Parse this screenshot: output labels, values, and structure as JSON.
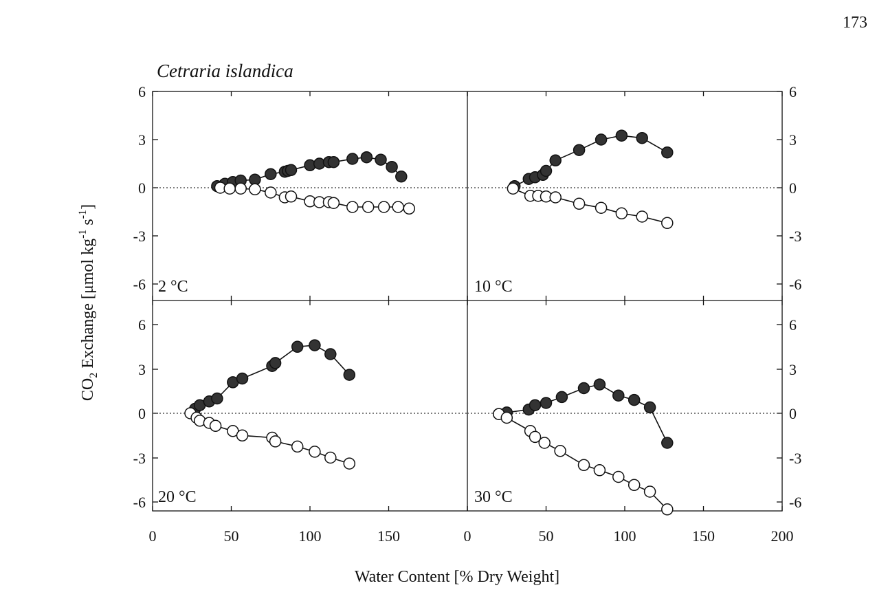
{
  "page_number": "173",
  "figure_title": "Cetraria islandica",
  "ylabel": {
    "main": "CO",
    "sub": "2",
    "rest": " Exchange [μmol kg",
    "sup1": "-1",
    "rest2": " s",
    "sup2": "-1",
    "end": "]"
  },
  "xlabel": "Water Content [% Dry Weight]",
  "y_tick_labels": [
    "6",
    "3",
    "0",
    "-3",
    "-6"
  ],
  "x_tick_labels_left": [
    "0",
    "50",
    "100",
    "150"
  ],
  "x_tick_labels_right": [
    "0",
    "50",
    "100",
    "150",
    "200"
  ],
  "colors": {
    "filled": "#333333",
    "open": "#ffffff",
    "line": "#111111",
    "zero_line": "#555555"
  },
  "chart_data": [
    {
      "type": "scatter",
      "panel": "2 °C",
      "xlim": [
        0,
        200
      ],
      "ylim": [
        -7,
        6
      ],
      "grid": false,
      "zero_line": "dotted",
      "series": [
        {
          "marker": "filled",
          "x": [
            41,
            46,
            51,
            56,
            65,
            75,
            84,
            86,
            88,
            100,
            106,
            112,
            115,
            127,
            136,
            145,
            152,
            158
          ],
          "y": [
            0.1,
            0.25,
            0.35,
            0.45,
            0.5,
            0.85,
            1.0,
            1.05,
            1.1,
            1.4,
            1.5,
            1.6,
            1.6,
            1.8,
            1.9,
            1.75,
            1.3,
            0.7
          ]
        },
        {
          "marker": "open",
          "x": [
            43,
            49,
            56,
            65,
            75,
            84,
            88,
            100,
            106,
            112,
            115,
            127,
            137,
            147,
            156,
            163
          ],
          "y": [
            0.0,
            -0.05,
            -0.05,
            -0.1,
            -0.3,
            -0.6,
            -0.55,
            -0.85,
            -0.9,
            -0.9,
            -0.95,
            -1.2,
            -1.2,
            -1.2,
            -1.2,
            -1.3
          ]
        }
      ]
    },
    {
      "type": "scatter",
      "panel": "10 °C",
      "xlim": [
        0,
        200
      ],
      "ylim": [
        -7,
        6
      ],
      "grid": false,
      "zero_line": "dotted",
      "series": [
        {
          "marker": "filled",
          "x": [
            30,
            39,
            43,
            48,
            50,
            56,
            71,
            85,
            98,
            111,
            127
          ],
          "y": [
            0.1,
            0.55,
            0.65,
            0.8,
            1.05,
            1.7,
            2.35,
            3.0,
            3.25,
            3.1,
            2.2
          ]
        },
        {
          "marker": "open",
          "x": [
            29,
            40,
            45,
            50,
            56,
            71,
            85,
            98,
            111,
            127
          ],
          "y": [
            -0.05,
            -0.5,
            -0.5,
            -0.55,
            -0.6,
            -1.0,
            -1.25,
            -1.6,
            -1.8,
            -2.2
          ]
        }
      ]
    },
    {
      "type": "scatter",
      "panel": "20 °C",
      "xlim": [
        0,
        200
      ],
      "ylim": [
        -7,
        7
      ],
      "grid": false,
      "zero_line": "dotted",
      "series": [
        {
          "marker": "filled",
          "x": [
            27,
            30,
            36,
            41,
            51,
            57,
            76,
            78,
            92,
            103,
            113,
            125
          ],
          "y": [
            0.3,
            0.55,
            0.8,
            1.0,
            2.1,
            2.35,
            3.2,
            3.4,
            4.5,
            4.6,
            4.0,
            2.6
          ]
        },
        {
          "marker": "open",
          "x": [
            24,
            28,
            30,
            36,
            40,
            51,
            57,
            76,
            78,
            92,
            103,
            113,
            125
          ],
          "y": [
            0.0,
            -0.3,
            -0.5,
            -0.65,
            -0.85,
            -1.2,
            -1.5,
            -1.65,
            -1.9,
            -2.25,
            -2.6,
            -3.0,
            -3.4
          ]
        }
      ]
    },
    {
      "type": "scatter",
      "panel": "30 °C",
      "xlim": [
        0,
        200
      ],
      "ylim": [
        -7,
        7
      ],
      "grid": false,
      "zero_line": "dotted",
      "series": [
        {
          "marker": "filled",
          "x": [
            20,
            25,
            39,
            43,
            50,
            60,
            74,
            84,
            96,
            106,
            116,
            127
          ],
          "y": [
            -0.05,
            0.05,
            0.25,
            0.55,
            0.7,
            1.1,
            1.7,
            1.95,
            1.2,
            0.9,
            0.4,
            -2.0
          ]
        },
        {
          "marker": "open",
          "x": [
            20,
            25,
            40,
            43,
            49,
            59,
            74,
            84,
            96,
            106,
            116,
            127
          ],
          "y": [
            -0.05,
            -0.3,
            -1.2,
            -1.6,
            -2.0,
            -2.55,
            -3.5,
            -3.85,
            -4.3,
            -4.85,
            -5.3,
            -6.5
          ]
        }
      ]
    }
  ]
}
